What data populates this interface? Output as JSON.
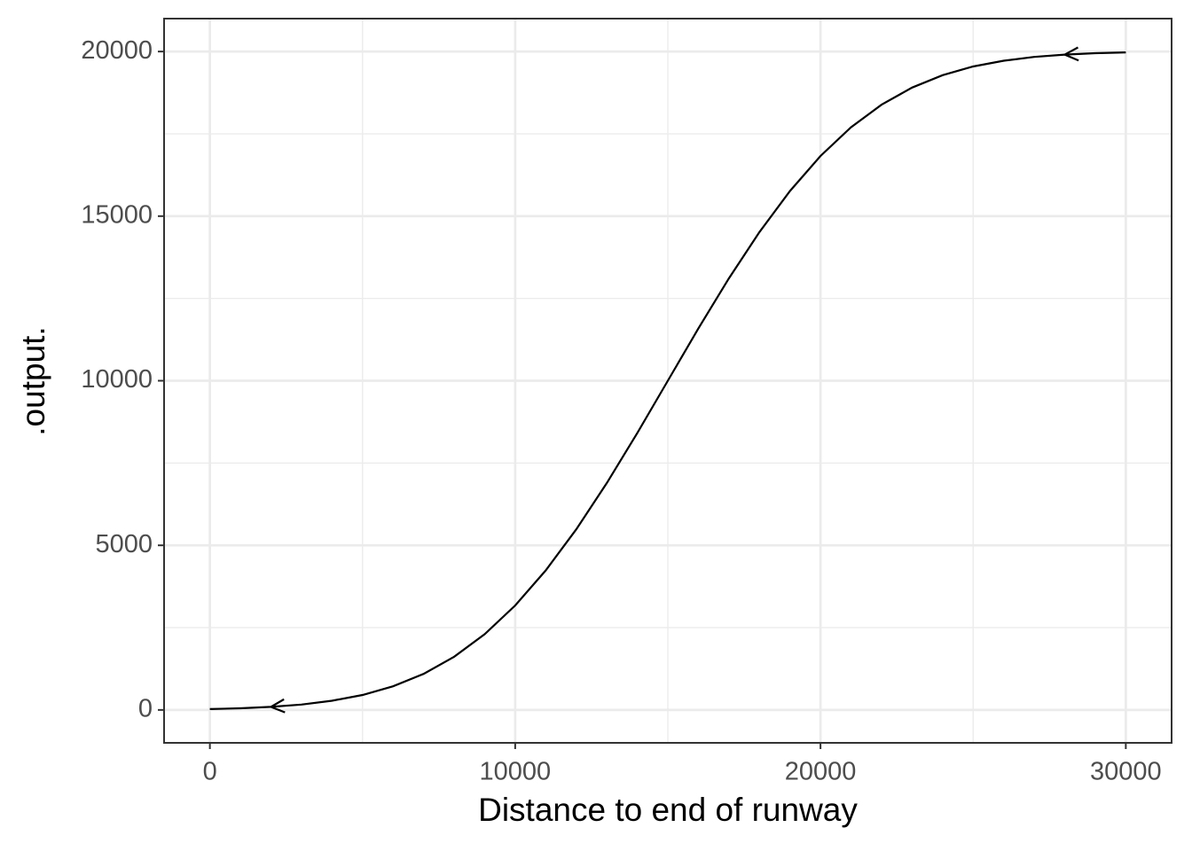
{
  "chart_data": {
    "type": "line",
    "x_label": "Distance to end of runway",
    "y_label": ".output.",
    "x": [
      0,
      1000,
      2000,
      3000,
      4000,
      5000,
      6000,
      7000,
      8000,
      9000,
      10000,
      11000,
      12000,
      13000,
      14000,
      15000,
      16000,
      17000,
      18000,
      19000,
      20000,
      21000,
      22000,
      23000,
      24000,
      25000,
      26000,
      27000,
      28000,
      29000,
      30000
    ],
    "series": [
      {
        "color": "#000000",
        "values": [
          27,
          51,
          93,
          164,
          278,
          455,
          719,
          1096,
          1615,
          2301,
          3173,
          4238,
          5485,
          6892,
          8414,
          10000,
          11586,
          13108,
          14515,
          15762,
          16827,
          17699,
          18385,
          18904,
          19281,
          19545,
          19722,
          19836,
          19907,
          19949,
          19973
        ]
      }
    ],
    "xlim": [
      -1500,
      31500
    ],
    "ylim": [
      -1000,
      21000
    ],
    "xticks": [
      0,
      10000,
      20000,
      30000
    ],
    "yticks": [
      0,
      5000,
      10000,
      15000,
      20000
    ],
    "xminorticks": [
      5000,
      15000,
      25000
    ],
    "yminorticks": [
      2500,
      7500,
      12500,
      17500
    ],
    "grid": true
  }
}
